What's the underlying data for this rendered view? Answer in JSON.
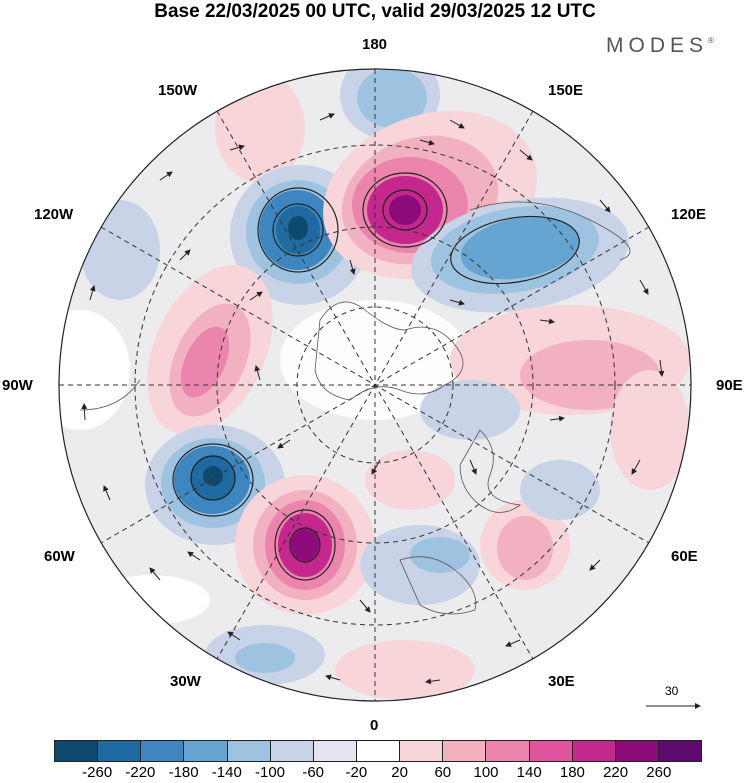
{
  "header": {
    "title": "Base 22/03/2025 00 UTC, valid 29/03/2025 12 UTC",
    "brand": "MODES",
    "brand_mark": "®"
  },
  "map": {
    "projection": "north-polar-stereographic",
    "longitude_labels": {
      "top": "180",
      "bottom": "0",
      "left": "90W",
      "right": "90E",
      "w150": "150W",
      "w120": "120W",
      "w60": "60W",
      "w30": "30W",
      "e150": "150E",
      "e120": "120E",
      "e60": "60E",
      "e30": "30E"
    },
    "features": [
      "coastlines",
      "graticule-dashed",
      "wind-vectors",
      "geopotential-anomaly-contours"
    ]
  },
  "reference_vector": {
    "value": "30"
  },
  "colorbar": {
    "colors": [
      "#0d4a6e",
      "#1f6aa0",
      "#3d86bf",
      "#66a5d1",
      "#9ec3e0",
      "#c8d3e8",
      "#e6e4f2",
      "#ffffff",
      "#f8d5d8",
      "#f2b1c0",
      "#ec85ae",
      "#e0559d",
      "#c4288c",
      "#8e0b7a",
      "#5e0b6e"
    ],
    "tick_labels": [
      "-260",
      "-220",
      "-180",
      "-140",
      "-100",
      "-60",
      "-20",
      "20",
      "60",
      "100",
      "140",
      "180",
      "220",
      "260"
    ]
  }
}
